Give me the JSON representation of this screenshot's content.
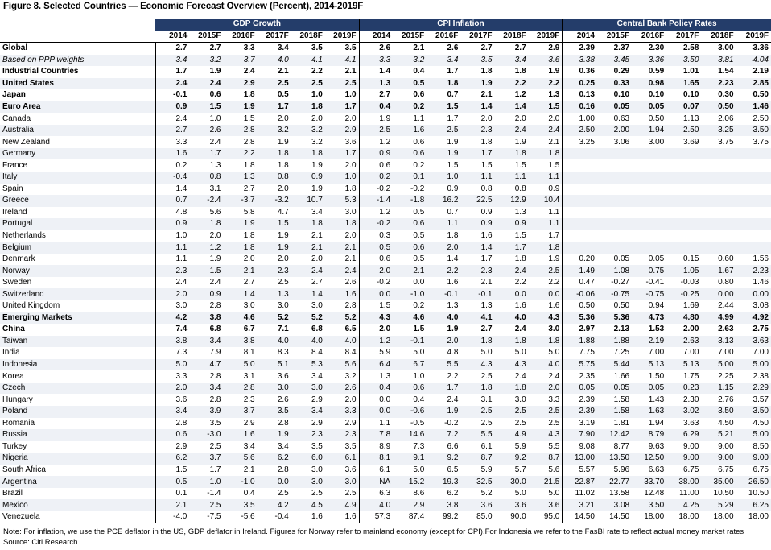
{
  "title": "Figure 8. Selected Countries — Economic Forecast Overview (Percent), 2014-2019F",
  "groups": [
    "GDP Growth",
    "CPI Inflation",
    "Central Bank Policy Rates"
  ],
  "years": [
    "2014",
    "2015F",
    "2016F",
    "2017F",
    "2018F",
    "2019F"
  ],
  "rows": [
    {
      "label": "Global",
      "style": "bold",
      "gdp": [
        "2.7",
        "2.7",
        "3.3",
        "3.4",
        "3.5",
        "3.5"
      ],
      "cpi": [
        "2.6",
        "2.1",
        "2.6",
        "2.7",
        "2.7",
        "2.9"
      ],
      "rate": [
        "2.39",
        "2.37",
        "2.30",
        "2.58",
        "3.00",
        "3.36"
      ]
    },
    {
      "label": "Based on PPP weights",
      "style": "italic",
      "gdp": [
        "3.4",
        "3.2",
        "3.7",
        "4.0",
        "4.1",
        "4.1"
      ],
      "cpi": [
        "3.3",
        "3.2",
        "3.4",
        "3.5",
        "3.4",
        "3.6"
      ],
      "rate": [
        "3.38",
        "3.45",
        "3.36",
        "3.50",
        "3.81",
        "4.04"
      ]
    },
    {
      "label": "Industrial Countries",
      "style": "bold",
      "gdp": [
        "1.7",
        "1.9",
        "2.4",
        "2.1",
        "2.2",
        "2.1"
      ],
      "cpi": [
        "1.4",
        "0.4",
        "1.7",
        "1.8",
        "1.8",
        "1.9"
      ],
      "rate": [
        "0.36",
        "0.29",
        "0.59",
        "1.01",
        "1.54",
        "2.19"
      ]
    },
    {
      "label": "United States",
      "style": "bold",
      "gdp": [
        "2.4",
        "2.4",
        "2.9",
        "2.5",
        "2.5",
        "2.5"
      ],
      "cpi": [
        "1.3",
        "0.5",
        "1.8",
        "1.9",
        "2.2",
        "2.2"
      ],
      "rate": [
        "0.25",
        "0.33",
        "0.98",
        "1.65",
        "2.23",
        "2.85"
      ]
    },
    {
      "label": "Japan",
      "style": "bold",
      "gdp": [
        "-0.1",
        "0.6",
        "1.8",
        "0.5",
        "1.0",
        "1.0"
      ],
      "cpi": [
        "2.7",
        "0.6",
        "0.7",
        "2.1",
        "1.2",
        "1.3"
      ],
      "rate": [
        "0.13",
        "0.10",
        "0.10",
        "0.10",
        "0.30",
        "0.50"
      ]
    },
    {
      "label": "Euro Area",
      "style": "bold",
      "gdp": [
        "0.9",
        "1.5",
        "1.9",
        "1.7",
        "1.8",
        "1.7"
      ],
      "cpi": [
        "0.4",
        "0.2",
        "1.5",
        "1.4",
        "1.4",
        "1.5"
      ],
      "rate": [
        "0.16",
        "0.05",
        "0.05",
        "0.07",
        "0.50",
        "1.46"
      ]
    },
    {
      "label": "Canada",
      "style": "",
      "gdp": [
        "2.4",
        "1.0",
        "1.5",
        "2.0",
        "2.0",
        "2.0"
      ],
      "cpi": [
        "1.9",
        "1.1",
        "1.7",
        "2.0",
        "2.0",
        "2.0"
      ],
      "rate": [
        "1.00",
        "0.63",
        "0.50",
        "1.13",
        "2.06",
        "2.50"
      ]
    },
    {
      "label": "Australia",
      "style": "",
      "gdp": [
        "2.7",
        "2.6",
        "2.8",
        "3.2",
        "3.2",
        "2.9"
      ],
      "cpi": [
        "2.5",
        "1.6",
        "2.5",
        "2.3",
        "2.4",
        "2.4"
      ],
      "rate": [
        "2.50",
        "2.00",
        "1.94",
        "2.50",
        "3.25",
        "3.50"
      ]
    },
    {
      "label": "New Zealand",
      "style": "",
      "gdp": [
        "3.3",
        "2.4",
        "2.8",
        "1.9",
        "3.2",
        "3.6"
      ],
      "cpi": [
        "1.2",
        "0.6",
        "1.9",
        "1.8",
        "1.9",
        "2.1"
      ],
      "rate": [
        "3.25",
        "3.06",
        "3.00",
        "3.69",
        "3.75",
        "3.75"
      ]
    },
    {
      "label": "Germany",
      "style": "",
      "gdp": [
        "1.6",
        "1.7",
        "2.2",
        "1.8",
        "1.8",
        "1.7"
      ],
      "cpi": [
        "0.9",
        "0.6",
        "1.9",
        "1.7",
        "1.8",
        "1.8"
      ],
      "rate": [
        "",
        "",
        "",
        "",
        "",
        ""
      ]
    },
    {
      "label": "France",
      "style": "",
      "gdp": [
        "0.2",
        "1.3",
        "1.8",
        "1.8",
        "1.9",
        "2.0"
      ],
      "cpi": [
        "0.6",
        "0.2",
        "1.5",
        "1.5",
        "1.5",
        "1.5"
      ],
      "rate": [
        "",
        "",
        "",
        "",
        "",
        ""
      ]
    },
    {
      "label": "Italy",
      "style": "",
      "gdp": [
        "-0.4",
        "0.8",
        "1.3",
        "0.8",
        "0.9",
        "1.0"
      ],
      "cpi": [
        "0.2",
        "0.1",
        "1.0",
        "1.1",
        "1.1",
        "1.1"
      ],
      "rate": [
        "",
        "",
        "",
        "",
        "",
        ""
      ]
    },
    {
      "label": "Spain",
      "style": "",
      "gdp": [
        "1.4",
        "3.1",
        "2.7",
        "2.0",
        "1.9",
        "1.8"
      ],
      "cpi": [
        "-0.2",
        "-0.2",
        "0.9",
        "0.8",
        "0.8",
        "0.9"
      ],
      "rate": [
        "",
        "",
        "",
        "",
        "",
        ""
      ]
    },
    {
      "label": "Greece",
      "style": "",
      "gdp": [
        "0.7",
        "-2.4",
        "-3.7",
        "-3.2",
        "10.7",
        "5.3"
      ],
      "cpi": [
        "-1.4",
        "-1.8",
        "16.2",
        "22.5",
        "12.9",
        "10.4"
      ],
      "rate": [
        "",
        "",
        "",
        "",
        "",
        ""
      ]
    },
    {
      "label": "Ireland",
      "style": "",
      "gdp": [
        "4.8",
        "5.6",
        "5.8",
        "4.7",
        "3.4",
        "3.0"
      ],
      "cpi": [
        "1.2",
        "0.5",
        "0.7",
        "0.9",
        "1.3",
        "1.1"
      ],
      "rate": [
        "",
        "",
        "",
        "",
        "",
        ""
      ]
    },
    {
      "label": "Portugal",
      "style": "",
      "gdp": [
        "0.9",
        "1.8",
        "1.9",
        "1.5",
        "1.8",
        "1.8"
      ],
      "cpi": [
        "-0.2",
        "0.6",
        "1.1",
        "0.9",
        "0.9",
        "1.1"
      ],
      "rate": [
        "",
        "",
        "",
        "",
        "",
        ""
      ]
    },
    {
      "label": "Netherlands",
      "style": "",
      "gdp": [
        "1.0",
        "2.0",
        "1.8",
        "1.9",
        "2.1",
        "2.0"
      ],
      "cpi": [
        "0.3",
        "0.5",
        "1.8",
        "1.6",
        "1.5",
        "1.7"
      ],
      "rate": [
        "",
        "",
        "",
        "",
        "",
        ""
      ]
    },
    {
      "label": "Belgium",
      "style": "",
      "gdp": [
        "1.1",
        "1.2",
        "1.8",
        "1.9",
        "2.1",
        "2.1"
      ],
      "cpi": [
        "0.5",
        "0.6",
        "2.0",
        "1.4",
        "1.7",
        "1.8"
      ],
      "rate": [
        "",
        "",
        "",
        "",
        "",
        ""
      ]
    },
    {
      "label": "Denmark",
      "style": "",
      "gdp": [
        "1.1",
        "1.9",
        "2.0",
        "2.0",
        "2.0",
        "2.1"
      ],
      "cpi": [
        "0.6",
        "0.5",
        "1.4",
        "1.7",
        "1.8",
        "1.9"
      ],
      "rate": [
        "0.20",
        "0.05",
        "0.05",
        "0.15",
        "0.60",
        "1.56"
      ]
    },
    {
      "label": "Norway",
      "style": "",
      "gdp": [
        "2.3",
        "1.5",
        "2.1",
        "2.3",
        "2.4",
        "2.4"
      ],
      "cpi": [
        "2.0",
        "2.1",
        "2.2",
        "2.3",
        "2.4",
        "2.5"
      ],
      "rate": [
        "1.49",
        "1.08",
        "0.75",
        "1.05",
        "1.67",
        "2.23"
      ]
    },
    {
      "label": "Sweden",
      "style": "",
      "gdp": [
        "2.4",
        "2.4",
        "2.7",
        "2.5",
        "2.7",
        "2.6"
      ],
      "cpi": [
        "-0.2",
        "0.0",
        "1.6",
        "2.1",
        "2.2",
        "2.2"
      ],
      "rate": [
        "0.47",
        "-0.27",
        "-0.41",
        "-0.03",
        "0.80",
        "1.46"
      ]
    },
    {
      "label": "Switzerland",
      "style": "",
      "gdp": [
        "2.0",
        "0.9",
        "1.4",
        "1.3",
        "1.4",
        "1.6"
      ],
      "cpi": [
        "0.0",
        "-1.0",
        "-0.1",
        "-0.1",
        "0.0",
        "0.0"
      ],
      "rate": [
        "-0.06",
        "-0.75",
        "-0.75",
        "-0.25",
        "0.00",
        "0.00"
      ]
    },
    {
      "label": "United Kingdom",
      "style": "",
      "gdp": [
        "3.0",
        "2.8",
        "3.0",
        "3.0",
        "3.0",
        "2.8"
      ],
      "cpi": [
        "1.5",
        "0.2",
        "1.3",
        "1.3",
        "1.6",
        "1.6"
      ],
      "rate": [
        "0.50",
        "0.50",
        "0.94",
        "1.69",
        "2.44",
        "3.08"
      ]
    },
    {
      "label": "Emerging Markets",
      "style": "bold",
      "gdp": [
        "4.2",
        "3.8",
        "4.6",
        "5.2",
        "5.2",
        "5.2"
      ],
      "cpi": [
        "4.3",
        "4.6",
        "4.0",
        "4.1",
        "4.0",
        "4.3"
      ],
      "rate": [
        "5.36",
        "5.36",
        "4.73",
        "4.80",
        "4.99",
        "4.92"
      ]
    },
    {
      "label": "China",
      "style": "bold",
      "gdp": [
        "7.4",
        "6.8",
        "6.7",
        "7.1",
        "6.8",
        "6.5"
      ],
      "cpi": [
        "2.0",
        "1.5",
        "1.9",
        "2.7",
        "2.4",
        "3.0"
      ],
      "rate": [
        "2.97",
        "2.13",
        "1.53",
        "2.00",
        "2.63",
        "2.75"
      ]
    },
    {
      "label": "Taiwan",
      "style": "",
      "gdp": [
        "3.8",
        "3.4",
        "3.8",
        "4.0",
        "4.0",
        "4.0"
      ],
      "cpi": [
        "1.2",
        "-0.1",
        "2.0",
        "1.8",
        "1.8",
        "1.8"
      ],
      "rate": [
        "1.88",
        "1.88",
        "2.19",
        "2.63",
        "3.13",
        "3.63"
      ]
    },
    {
      "label": "India",
      "style": "",
      "gdp": [
        "7.3",
        "7.9",
        "8.1",
        "8.3",
        "8.4",
        "8.4"
      ],
      "cpi": [
        "5.9",
        "5.0",
        "4.8",
        "5.0",
        "5.0",
        "5.0"
      ],
      "rate": [
        "7.75",
        "7.25",
        "7.00",
        "7.00",
        "7.00",
        "7.00"
      ]
    },
    {
      "label": "Indonesia",
      "style": "",
      "gdp": [
        "5.0",
        "4.7",
        "5.0",
        "5.1",
        "5.3",
        "5.6"
      ],
      "cpi": [
        "6.4",
        "6.7",
        "5.5",
        "4.3",
        "4.3",
        "4.0"
      ],
      "rate": [
        "5.75",
        "5.44",
        "5.13",
        "5.13",
        "5.00",
        "5.00"
      ]
    },
    {
      "label": "Korea",
      "style": "",
      "gdp": [
        "3.3",
        "2.8",
        "3.1",
        "3.6",
        "3.4",
        "3.2"
      ],
      "cpi": [
        "1.3",
        "1.0",
        "2.2",
        "2.5",
        "2.4",
        "2.4"
      ],
      "rate": [
        "2.35",
        "1.66",
        "1.50",
        "1.75",
        "2.25",
        "2.38"
      ]
    },
    {
      "label": "Czech",
      "style": "",
      "gdp": [
        "2.0",
        "3.4",
        "2.8",
        "3.0",
        "3.0",
        "2.6"
      ],
      "cpi": [
        "0.4",
        "0.6",
        "1.7",
        "1.8",
        "1.8",
        "2.0"
      ],
      "rate": [
        "0.05",
        "0.05",
        "0.05",
        "0.23",
        "1.15",
        "2.29"
      ]
    },
    {
      "label": "Hungary",
      "style": "",
      "gdp": [
        "3.6",
        "2.8",
        "2.3",
        "2.6",
        "2.9",
        "2.0"
      ],
      "cpi": [
        "0.0",
        "0.4",
        "2.4",
        "3.1",
        "3.0",
        "3.3"
      ],
      "rate": [
        "2.39",
        "1.58",
        "1.43",
        "2.30",
        "2.76",
        "3.57"
      ]
    },
    {
      "label": "Poland",
      "style": "",
      "gdp": [
        "3.4",
        "3.9",
        "3.7",
        "3.5",
        "3.4",
        "3.3"
      ],
      "cpi": [
        "0.0",
        "-0.6",
        "1.9",
        "2.5",
        "2.5",
        "2.5"
      ],
      "rate": [
        "2.39",
        "1.58",
        "1.63",
        "3.02",
        "3.50",
        "3.50"
      ]
    },
    {
      "label": "Romania",
      "style": "",
      "gdp": [
        "2.8",
        "3.5",
        "2.9",
        "2.8",
        "2.9",
        "2.9"
      ],
      "cpi": [
        "1.1",
        "-0.5",
        "-0.2",
        "2.5",
        "2.5",
        "2.5"
      ],
      "rate": [
        "3.19",
        "1.81",
        "1.94",
        "3.63",
        "4.50",
        "4.50"
      ]
    },
    {
      "label": "Russia",
      "style": "",
      "gdp": [
        "0.6",
        "-3.0",
        "1.6",
        "1.9",
        "2.3",
        "2.3"
      ],
      "cpi": [
        "7.8",
        "14.6",
        "7.2",
        "5.5",
        "4.9",
        "4.3"
      ],
      "rate": [
        "7.90",
        "12.42",
        "8.79",
        "6.29",
        "5.21",
        "5.00"
      ]
    },
    {
      "label": "Turkey",
      "style": "",
      "gdp": [
        "2.9",
        "2.5",
        "3.4",
        "3.4",
        "3.5",
        "3.5"
      ],
      "cpi": [
        "8.9",
        "7.3",
        "6.6",
        "6.1",
        "5.9",
        "5.5"
      ],
      "rate": [
        "9.08",
        "8.77",
        "9.63",
        "9.00",
        "9.00",
        "8.50"
      ]
    },
    {
      "label": "Nigeria",
      "style": "",
      "gdp": [
        "6.2",
        "3.7",
        "5.6",
        "6.2",
        "6.0",
        "6.1"
      ],
      "cpi": [
        "8.1",
        "9.1",
        "9.2",
        "8.7",
        "9.2",
        "8.7"
      ],
      "rate": [
        "13.00",
        "13.50",
        "12.50",
        "9.00",
        "9.00",
        "9.00"
      ]
    },
    {
      "label": "South Africa",
      "style": "",
      "gdp": [
        "1.5",
        "1.7",
        "2.1",
        "2.8",
        "3.0",
        "3.6"
      ],
      "cpi": [
        "6.1",
        "5.0",
        "6.5",
        "5.9",
        "5.7",
        "5.6"
      ],
      "rate": [
        "5.57",
        "5.96",
        "6.63",
        "6.75",
        "6.75",
        "6.75"
      ]
    },
    {
      "label": "Argentina",
      "style": "",
      "gdp": [
        "0.5",
        "1.0",
        "-1.0",
        "0.0",
        "3.0",
        "3.0"
      ],
      "cpi": [
        "NA",
        "15.2",
        "19.3",
        "32.5",
        "30.0",
        "21.5"
      ],
      "rate": [
        "22.87",
        "22.77",
        "33.70",
        "38.00",
        "35.00",
        "26.50"
      ]
    },
    {
      "label": "Brazil",
      "style": "",
      "gdp": [
        "0.1",
        "-1.4",
        "0.4",
        "2.5",
        "2.5",
        "2.5"
      ],
      "cpi": [
        "6.3",
        "8.6",
        "6.2",
        "5.2",
        "5.0",
        "5.0"
      ],
      "rate": [
        "11.02",
        "13.58",
        "12.48",
        "11.00",
        "10.50",
        "10.50"
      ]
    },
    {
      "label": "Mexico",
      "style": "",
      "gdp": [
        "2.1",
        "2.5",
        "3.5",
        "4.2",
        "4.5",
        "4.9"
      ],
      "cpi": [
        "4.0",
        "2.9",
        "3.8",
        "3.6",
        "3.6",
        "3.6"
      ],
      "rate": [
        "3.21",
        "3.08",
        "3.50",
        "4.25",
        "5.29",
        "6.25"
      ]
    },
    {
      "label": "Venezuela",
      "style": "",
      "gdp": [
        "-4.0",
        "-7.5",
        "-5.6",
        "-0.4",
        "1.6",
        "1.6"
      ],
      "cpi": [
        "57.3",
        "87.4",
        "99.2",
        "85.0",
        "90.0",
        "95.0"
      ],
      "rate": [
        "14.50",
        "14.50",
        "18.00",
        "18.00",
        "18.00",
        "18.00"
      ]
    }
  ],
  "note": "Note: For inflation, we use the PCE deflator in the US, GDP deflator in Ireland. Figures for Norway refer to mainland economy (except for CPI).For Indonesia we refer to the FasBI rate to reflect actual money market rates",
  "source": "Source: Citi Research",
  "colors": {
    "header_bg": "#243d6a",
    "header_text": "#ffffff",
    "row_band": "#eef1f6"
  }
}
